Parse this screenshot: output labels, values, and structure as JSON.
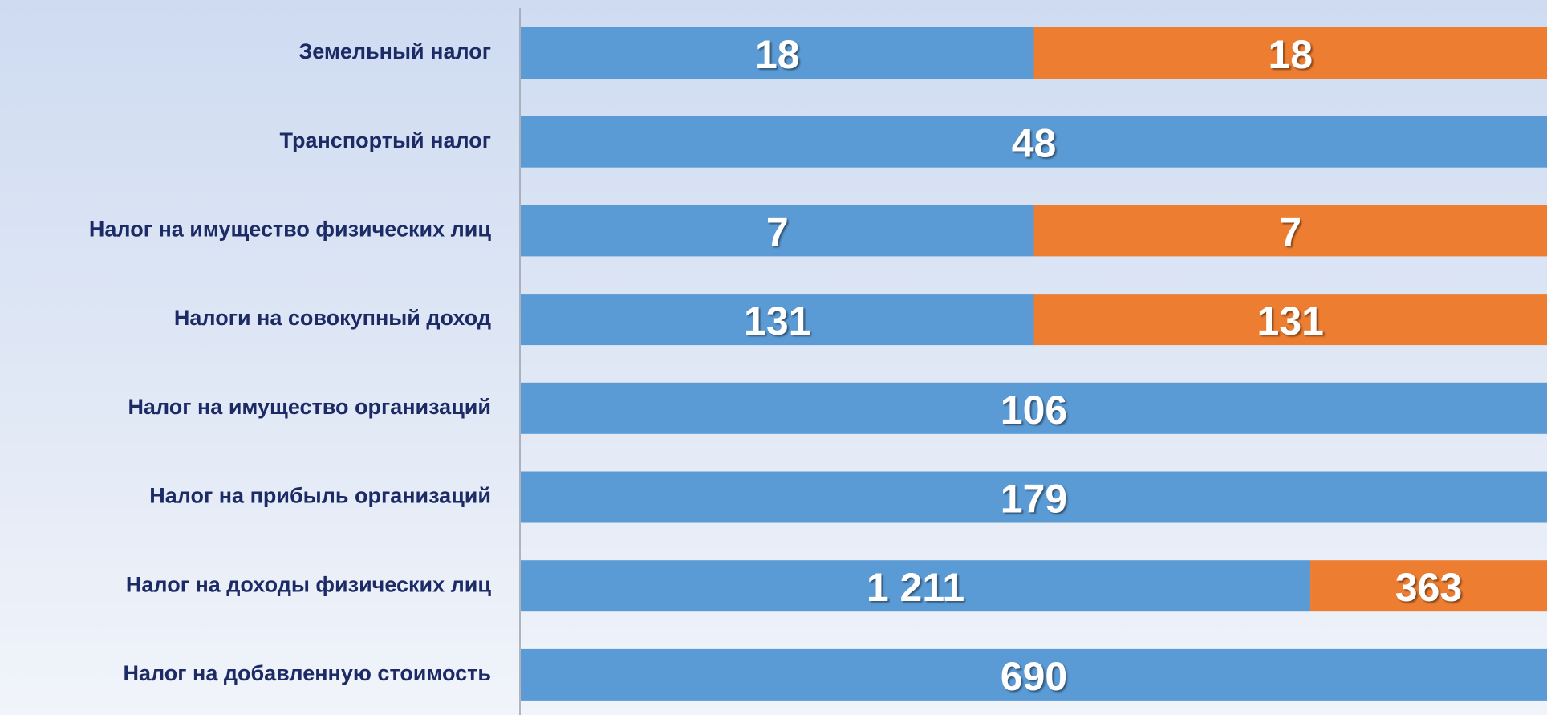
{
  "chart_data": {
    "type": "bar",
    "orientation": "horizontal",
    "stacking": "percent",
    "categories": [
      "Земельный налог",
      "Транспортый налог",
      "Налог на имущество физических лиц",
      "Налоги на совокупный доход",
      "Налог на имущество организаций",
      "Налог на прибыль организаций",
      "Налог на доходы физических лиц",
      "Налог на добавленную стоимость"
    ],
    "series": [
      {
        "color": "#5b9bd5",
        "values": [
          18,
          48,
          7,
          131,
          106,
          179,
          1211,
          690
        ],
        "value_labels": [
          "18",
          "48",
          "7",
          "131",
          "106",
          "179",
          "1 211",
          "690"
        ]
      },
      {
        "color": "#ed7d31",
        "values": [
          18,
          null,
          7,
          131,
          null,
          null,
          363,
          null
        ]
      }
    ]
  }
}
